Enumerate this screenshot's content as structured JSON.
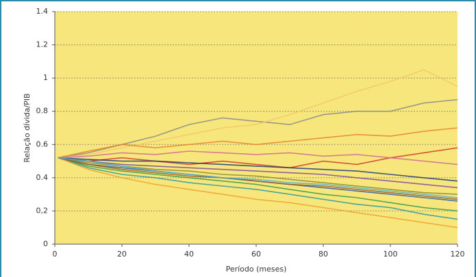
{
  "chart_data": {
    "type": "line",
    "ylabel": "Relação dívida/PIB",
    "xlabel": "Período (meses)",
    "x": [
      1,
      10,
      20,
      30,
      40,
      50,
      60,
      70,
      80,
      90,
      100,
      110,
      120
    ],
    "xlim": [
      0,
      120
    ],
    "xticks": [
      0,
      20,
      40,
      60,
      80,
      100,
      120
    ],
    "ylim": [
      0,
      1.4
    ],
    "yticks": [
      0,
      {
        "value": 0.2,
        "label": "0,2"
      },
      0.4,
      0.6,
      0.8,
      1,
      1.2,
      1.4
    ],
    "grid": true,
    "series": [
      {
        "color": "#8a8a8a",
        "values": [
          0.52,
          0.55,
          0.6,
          0.65,
          0.72,
          0.76,
          0.74,
          0.72,
          0.78,
          0.8,
          0.8,
          0.85,
          0.87
        ]
      },
      {
        "color": "#f2c86a",
        "values": [
          0.52,
          0.54,
          0.58,
          0.62,
          0.66,
          0.7,
          0.72,
          0.78,
          0.85,
          0.92,
          0.98,
          1.05,
          0.95
        ]
      },
      {
        "color": "#e8822a",
        "values": [
          0.52,
          0.56,
          0.6,
          0.58,
          0.6,
          0.62,
          0.6,
          0.62,
          0.64,
          0.66,
          0.65,
          0.68,
          0.7
        ]
      },
      {
        "color": "#d03a2a",
        "values": [
          0.52,
          0.5,
          0.52,
          0.5,
          0.48,
          0.5,
          0.48,
          0.46,
          0.5,
          0.48,
          0.52,
          0.55,
          0.58
        ]
      },
      {
        "color": "#2a5ab0",
        "values": [
          0.52,
          0.48,
          0.46,
          0.44,
          0.42,
          0.4,
          0.38,
          0.36,
          0.34,
          0.32,
          0.3,
          0.28,
          0.26
        ]
      },
      {
        "color": "#3a9a4a",
        "values": [
          0.52,
          0.47,
          0.44,
          0.42,
          0.4,
          0.38,
          0.36,
          0.33,
          0.3,
          0.28,
          0.25,
          0.22,
          0.2
        ]
      },
      {
        "color": "#7a4aa0",
        "values": [
          0.52,
          0.5,
          0.48,
          0.47,
          0.46,
          0.45,
          0.44,
          0.43,
          0.42,
          0.4,
          0.38,
          0.36,
          0.34
        ]
      },
      {
        "color": "#2a9aa0",
        "values": [
          0.52,
          0.46,
          0.42,
          0.4,
          0.37,
          0.35,
          0.33,
          0.3,
          0.27,
          0.24,
          0.22,
          0.18,
          0.15
        ]
      },
      {
        "color": "#f0a030",
        "values": [
          0.52,
          0.45,
          0.4,
          0.36,
          0.33,
          0.3,
          0.27,
          0.25,
          0.22,
          0.19,
          0.16,
          0.13,
          0.1
        ]
      },
      {
        "color": "#1a3a7a",
        "values": [
          0.52,
          0.51,
          0.5,
          0.5,
          0.49,
          0.48,
          0.47,
          0.46,
          0.45,
          0.44,
          0.42,
          0.4,
          0.38
        ]
      },
      {
        "color": "#8a8a30",
        "values": [
          0.52,
          0.49,
          0.47,
          0.45,
          0.44,
          0.42,
          0.41,
          0.39,
          0.37,
          0.35,
          0.33,
          0.31,
          0.3
        ]
      },
      {
        "color": "#d06a9a",
        "values": [
          0.52,
          0.53,
          0.55,
          0.54,
          0.56,
          0.55,
          0.54,
          0.55,
          0.53,
          0.54,
          0.52,
          0.5,
          0.48
        ]
      },
      {
        "color": "#9a5a2a",
        "values": [
          0.52,
          0.48,
          0.45,
          0.43,
          0.41,
          0.4,
          0.38,
          0.36,
          0.35,
          0.33,
          0.31,
          0.29,
          0.27
        ]
      },
      {
        "color": "#4ab0d0",
        "values": [
          0.52,
          0.5,
          0.47,
          0.44,
          0.42,
          0.4,
          0.39,
          0.37,
          0.36,
          0.34,
          0.32,
          0.3,
          0.28
        ]
      }
    ]
  }
}
